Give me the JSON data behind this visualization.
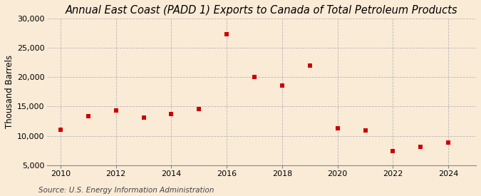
{
  "title": "Annual East Coast (PADD 1) Exports to Canada of Total Petroleum Products",
  "ylabel": "Thousand Barrels",
  "source": "Source: U.S. Energy Information Administration",
  "background_color": "#faebd7",
  "plot_bg_color": "#faebd7",
  "x_values": [
    2010,
    2011,
    2012,
    2013,
    2014,
    2015,
    2016,
    2017,
    2018,
    2019,
    2020,
    2021,
    2022,
    2023,
    2024
  ],
  "y_values": [
    11000,
    13300,
    14300,
    13100,
    13700,
    14600,
    27300,
    20000,
    18600,
    22000,
    11300,
    10900,
    7400,
    8100,
    8900
  ],
  "marker_color": "#cc0000",
  "marker_size": 5,
  "ylim": [
    5000,
    30000
  ],
  "yticks": [
    5000,
    10000,
    15000,
    20000,
    25000,
    30000
  ],
  "xlim": [
    2009.5,
    2025.0
  ],
  "xticks": [
    2010,
    2012,
    2014,
    2016,
    2018,
    2020,
    2022,
    2024
  ],
  "title_fontsize": 10.5,
  "ylabel_fontsize": 8.5,
  "source_fontsize": 7.5,
  "tick_fontsize": 8,
  "grid_color": "#b0b0b0",
  "spine_color": "#888888"
}
